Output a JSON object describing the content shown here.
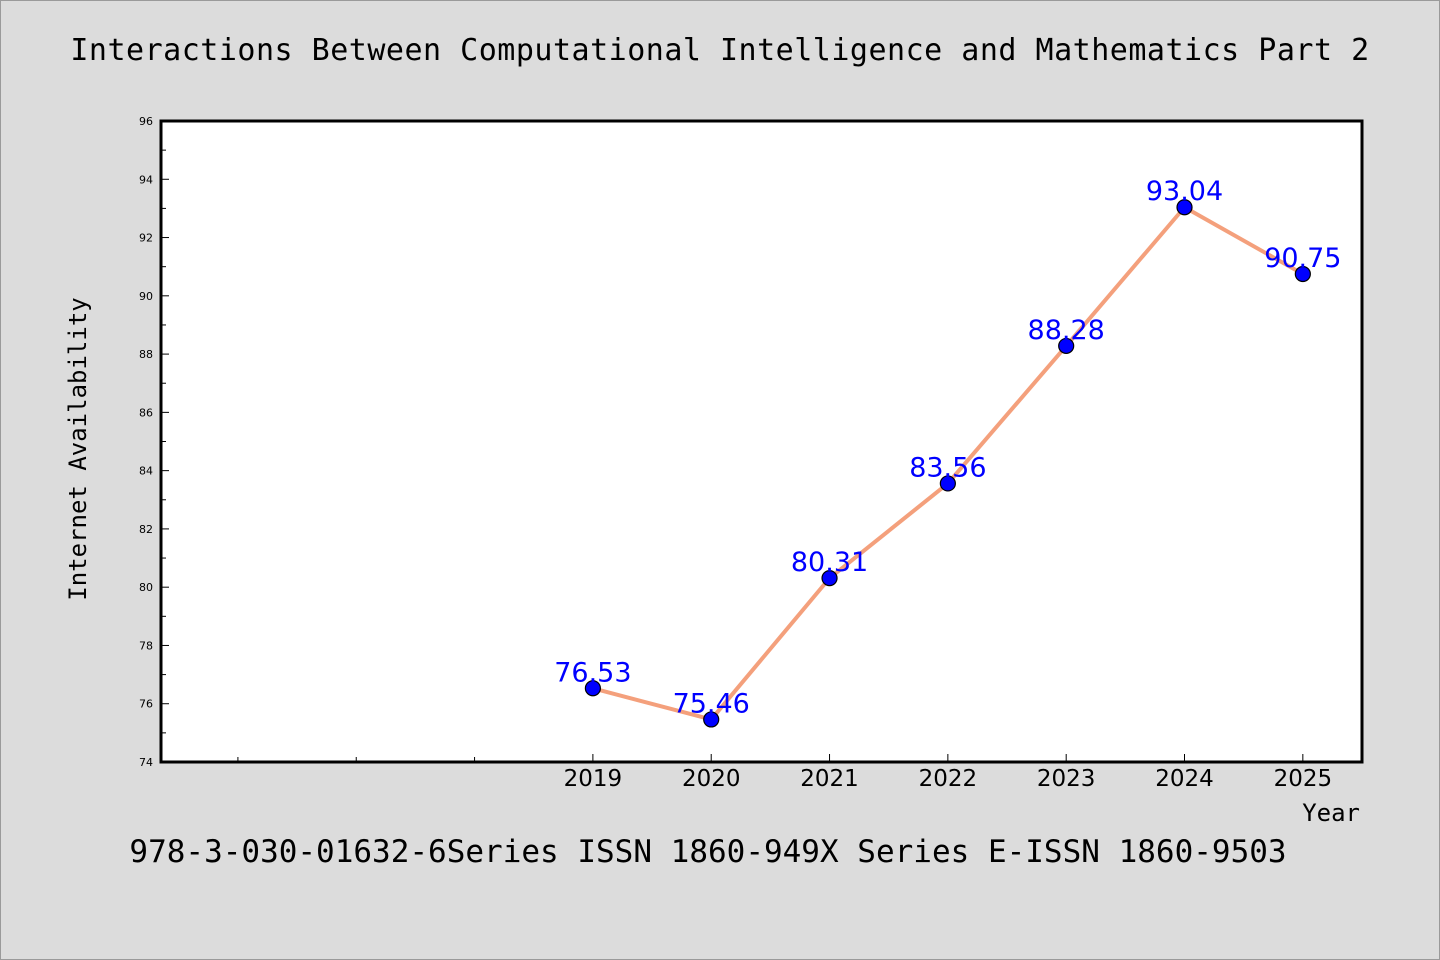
{
  "chart_data": {
    "type": "line",
    "title": "Interactions Between Computational Intelligence and Mathematics Part 2",
    "xlabel": "Year",
    "ylabel": "Internet Availability",
    "x": [
      2019,
      2020,
      2021,
      2022,
      2023,
      2024,
      2025
    ],
    "x_tick_labels": [
      "2019",
      "2020",
      "2021",
      "2022",
      "2023",
      "2024",
      "2025"
    ],
    "y_ticks": [
      74,
      76,
      78,
      80,
      82,
      84,
      86,
      88,
      90,
      92,
      94,
      96
    ],
    "ylim": [
      74,
      96
    ],
    "xlim": [
      2015.35,
      2025.5
    ],
    "series": [
      {
        "values": [
          76.53,
          75.46,
          80.31,
          83.56,
          88.28,
          93.04,
          90.75
        ],
        "data_labels": [
          "76.53",
          "75.46",
          "80.31",
          "83.56",
          "88.28",
          "93.04",
          "90.75"
        ],
        "line_color": "#f4a07c",
        "marker_color": "#0000ff",
        "label_color": "#0000ff"
      }
    ],
    "grid": false,
    "legend": "none"
  },
  "caption": "978-3-030-01632-6Series ISSN 1860-949X Series E-ISSN 1860-9503"
}
